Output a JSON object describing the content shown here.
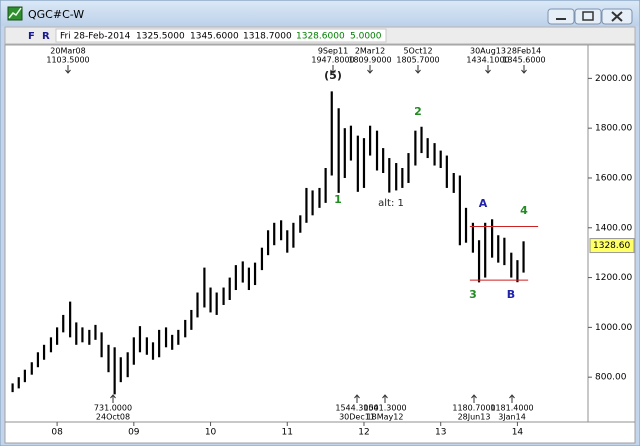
{
  "window": {
    "title": "QGC#C-W"
  },
  "toolbar": {
    "buttons": [
      "F",
      "R"
    ],
    "fields": [
      {
        "text": "Fri 28-Feb-2014",
        "color": "#000000"
      },
      {
        "text": "1325.5000",
        "color": "#000000"
      },
      {
        "text": "1345.6000",
        "color": "#000000"
      },
      {
        "text": "1318.7000",
        "color": "#000000"
      },
      {
        "text": "1328.6000",
        "color": "#008000"
      },
      {
        "text": "5.0000",
        "color": "#008000"
      }
    ]
  },
  "chart_data": {
    "type": "range-bar",
    "color": "#000000",
    "x": [
      2007.42,
      2007.5,
      2007.58,
      2007.67,
      2007.75,
      2007.83,
      2007.92,
      2008.0,
      2008.08,
      2008.17,
      2008.25,
      2008.33,
      2008.42,
      2008.5,
      2008.58,
      2008.67,
      2008.75,
      2008.83,
      2008.92,
      2009.0,
      2009.08,
      2009.17,
      2009.25,
      2009.33,
      2009.42,
      2009.5,
      2009.58,
      2009.67,
      2009.75,
      2009.83,
      2009.92,
      2010.0,
      2010.08,
      2010.17,
      2010.25,
      2010.33,
      2010.42,
      2010.5,
      2010.58,
      2010.67,
      2010.75,
      2010.83,
      2010.92,
      2011.0,
      2011.08,
      2011.17,
      2011.25,
      2011.33,
      2011.42,
      2011.5,
      2011.58,
      2011.67,
      2011.75,
      2011.83,
      2011.92,
      2012.0,
      2012.08,
      2012.17,
      2012.25,
      2012.33,
      2012.42,
      2012.5,
      2012.58,
      2012.67,
      2012.75,
      2012.83,
      2012.92,
      2013.0,
      2013.08,
      2013.17,
      2013.25,
      2013.33,
      2013.42,
      2013.5,
      2013.58,
      2013.67,
      2013.75,
      2013.83,
      2013.92,
      2014.0,
      2014.08
    ],
    "low": [
      740,
      755,
      780,
      810,
      840,
      870,
      900,
      930,
      980,
      960,
      930,
      940,
      930,
      950,
      880,
      820,
      731,
      780,
      800,
      850,
      900,
      890,
      870,
      880,
      920,
      910,
      930,
      960,
      990,
      1040,
      1080,
      1060,
      1050,
      1090,
      1110,
      1150,
      1180,
      1150,
      1170,
      1230,
      1290,
      1330,
      1350,
      1300,
      1320,
      1380,
      1420,
      1450,
      1480,
      1500,
      1610,
      1540,
      1600,
      1670,
      1544.3,
      1560,
      1690,
      1630,
      1620,
      1541.3,
      1550,
      1560,
      1580,
      1650,
      1700,
      1680,
      1650,
      1640,
      1560,
      1540,
      1330,
      1340,
      1300,
      1180.7,
      1200,
      1280,
      1260,
      1250,
      1200,
      1181.4,
      1220
    ],
    "high": [
      775,
      800,
      830,
      860,
      900,
      930,
      960,
      1000,
      1050,
      1103.5,
      1020,
      1000,
      990,
      1010,
      980,
      930,
      920,
      880,
      900,
      960,
      1005,
      960,
      940,
      990,
      1000,
      970,
      990,
      1030,
      1070,
      1140,
      1240,
      1160,
      1140,
      1160,
      1200,
      1250,
      1265,
      1240,
      1260,
      1320,
      1390,
      1420,
      1430,
      1390,
      1420,
      1450,
      1560,
      1550,
      1560,
      1640,
      1947.8,
      1880,
      1800,
      1810,
      1770,
      1760,
      1809.9,
      1790,
      1720,
      1680,
      1660,
      1640,
      1700,
      1790,
      1805.7,
      1760,
      1740,
      1710,
      1690,
      1620,
      1610,
      1480,
      1420,
      1350,
      1420,
      1434.1,
      1370,
      1360,
      1300,
      1270,
      1345.6
    ],
    "xlim": [
      2007.36,
      2014.92
    ],
    "ylim": [
      620,
      2130
    ],
    "xticks": [
      {
        "value": 2008,
        "label": "08"
      },
      {
        "value": 2009,
        "label": "09"
      },
      {
        "value": 2010,
        "label": "10"
      },
      {
        "value": 2011,
        "label": "11"
      },
      {
        "value": 2012,
        "label": "12"
      },
      {
        "value": 2013,
        "label": "13"
      },
      {
        "value": 2014,
        "label": "14"
      }
    ],
    "yticks": [
      {
        "value": 800,
        "label": "800.00"
      },
      {
        "value": 1000,
        "label": "1000.00"
      },
      {
        "value": 1200,
        "label": "1200.00"
      },
      {
        "value": 1400,
        "label": "1400.00"
      },
      {
        "value": 1600,
        "label": "1600.00"
      },
      {
        "value": 1800,
        "label": "1800.00"
      },
      {
        "value": 2000,
        "label": "2000.00"
      }
    ],
    "last_price": {
      "value": 1328.6,
      "label": "1328.60"
    },
    "levels": [
      {
        "value": 1405,
        "x": [
          2013.38,
          2014.27
        ],
        "color": "#cc2222"
      },
      {
        "value": 1190,
        "x": [
          2013.38,
          2014.14
        ],
        "color": "#cc2222"
      }
    ],
    "annotations_top": [
      {
        "date": "20Mar08",
        "value": "1103.5000"
      },
      {
        "date": "9Sep11",
        "value": "1947.8000"
      },
      {
        "date": "2Mar12",
        "value": "1809.9000"
      },
      {
        "date": "5Oct12",
        "value": "1805.7000"
      },
      {
        "date": "30Aug13",
        "value": "1434.1000"
      },
      {
        "date": "28Feb14",
        "value": "1345.6000"
      }
    ],
    "annotations_bottom": [
      {
        "value": "731.0000",
        "date": "24Oct08"
      },
      {
        "value": "1544.3000",
        "date": "30Dec11"
      },
      {
        "value": "1541.3000",
        "date": "18May12"
      },
      {
        "value": "1180.7000",
        "date": "28Jun13"
      },
      {
        "value": "1181.4000",
        "date": "3Jan14"
      }
    ],
    "wave_labels": [
      {
        "text": "(5)",
        "color": "#222222"
      },
      {
        "text": "1",
        "color": "#228B22"
      },
      {
        "text": "2",
        "color": "#228B22"
      },
      {
        "text": "alt: 1",
        "color": "#222222"
      },
      {
        "text": "3",
        "color": "#228B22"
      },
      {
        "text": "A",
        "color": "#2222aa"
      },
      {
        "text": "B",
        "color": "#2222aa"
      },
      {
        "text": "4",
        "color": "#228B22"
      }
    ]
  }
}
